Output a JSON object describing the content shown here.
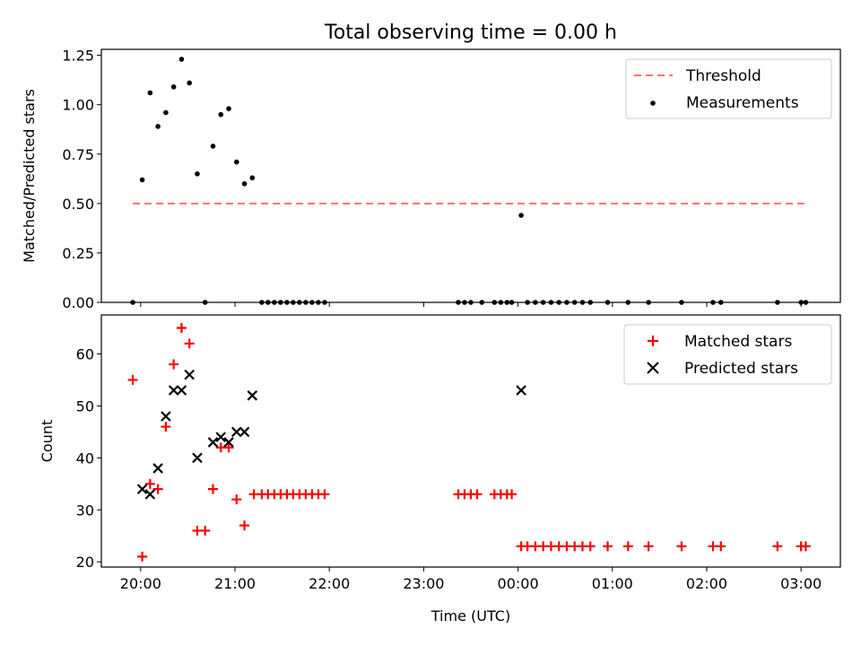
{
  "figure": {
    "title": "Total observing time = 0.00 h"
  },
  "chart_data": [
    {
      "type": "scatter",
      "panel": "top",
      "ylabel": "Matched/Predicted stars",
      "xlabel": "",
      "xlim": [
        "19:35",
        "03:25"
      ],
      "ylim": [
        0,
        1.28
      ],
      "yticks": [
        0.0,
        0.25,
        0.5,
        0.75,
        1.0,
        1.25
      ],
      "ytick_labels": [
        "0.00",
        "0.25",
        "0.50",
        "0.75",
        "1.00",
        "1.25"
      ],
      "xticks": [
        "20:00",
        "21:00",
        "22:00",
        "23:00",
        "00:00",
        "01:00",
        "02:00",
        "03:00"
      ],
      "show_xtick_labels": false,
      "legend_position": "top-right",
      "legend": [
        "Threshold",
        "Measurements"
      ],
      "colors": {
        "threshold": "#ff7070",
        "measurements": "#000000"
      },
      "threshold": {
        "name": "Threshold",
        "y": 0.5,
        "x": [
          "19:55",
          "03:05"
        ]
      },
      "series": [
        {
          "name": "Measurements",
          "marker": "dot",
          "points": [
            [
              "19:55",
              0.0
            ],
            [
              "20:01",
              0.62
            ],
            [
              "20:06",
              1.06
            ],
            [
              "20:11",
              0.89
            ],
            [
              "20:16",
              0.96
            ],
            [
              "20:21",
              1.09
            ],
            [
              "20:26",
              1.23
            ],
            [
              "20:31",
              1.11
            ],
            [
              "20:36",
              0.65
            ],
            [
              "20:41",
              0.0
            ],
            [
              "20:46",
              0.79
            ],
            [
              "20:51",
              0.95
            ],
            [
              "20:56",
              0.98
            ],
            [
              "21:01",
              0.71
            ],
            [
              "21:06",
              0.6
            ],
            [
              "21:11",
              0.63
            ],
            [
              "21:17",
              0.0
            ],
            [
              "21:21",
              0.0
            ],
            [
              "21:25",
              0.0
            ],
            [
              "21:29",
              0.0
            ],
            [
              "21:33",
              0.0
            ],
            [
              "21:37",
              0.0
            ],
            [
              "21:41",
              0.0
            ],
            [
              "21:45",
              0.0
            ],
            [
              "21:49",
              0.0
            ],
            [
              "21:53",
              0.0
            ],
            [
              "21:57",
              0.0
            ],
            [
              "23:22",
              0.0
            ],
            [
              "23:26",
              0.0
            ],
            [
              "23:30",
              0.0
            ],
            [
              "23:37",
              0.0
            ],
            [
              "23:45",
              0.0
            ],
            [
              "23:49",
              0.0
            ],
            [
              "23:53",
              0.0
            ],
            [
              "23:56",
              0.0
            ],
            [
              "00:02",
              0.44
            ],
            [
              "00:06",
              0.0
            ],
            [
              "00:11",
              0.0
            ],
            [
              "00:16",
              0.0
            ],
            [
              "00:21",
              0.0
            ],
            [
              "00:26",
              0.0
            ],
            [
              "00:31",
              0.0
            ],
            [
              "00:36",
              0.0
            ],
            [
              "00:41",
              0.0
            ],
            [
              "00:46",
              0.0
            ],
            [
              "00:57",
              0.0
            ],
            [
              "01:10",
              0.0
            ],
            [
              "01:23",
              0.0
            ],
            [
              "01:44",
              0.0
            ],
            [
              "02:04",
              0.0
            ],
            [
              "02:09",
              0.0
            ],
            [
              "02:45",
              0.0
            ],
            [
              "03:00",
              0.0
            ],
            [
              "03:03",
              0.0
            ]
          ]
        }
      ]
    },
    {
      "type": "scatter",
      "panel": "bottom",
      "ylabel": "Count",
      "xlabel": "Time (UTC)",
      "xlim": [
        "19:35",
        "03:25"
      ],
      "ylim": [
        19,
        67.5
      ],
      "yticks": [
        20,
        30,
        40,
        50,
        60
      ],
      "ytick_labels": [
        "20",
        "30",
        "40",
        "50",
        "60"
      ],
      "xticks": [
        "20:00",
        "21:00",
        "22:00",
        "23:00",
        "00:00",
        "01:00",
        "02:00",
        "03:00"
      ],
      "xtick_labels": [
        "20:00",
        "21:00",
        "22:00",
        "23:00",
        "00:00",
        "01:00",
        "02:00",
        "03:00"
      ],
      "show_xtick_labels": true,
      "legend_position": "top-right",
      "legend": [
        "Matched stars",
        "Predicted stars"
      ],
      "colors": {
        "matched": "#ff0000",
        "predicted": "#000000"
      },
      "series": [
        {
          "name": "Matched stars",
          "marker": "plus",
          "points": [
            [
              "19:55",
              55
            ],
            [
              "20:01",
              21
            ],
            [
              "20:06",
              35
            ],
            [
              "20:11",
              34
            ],
            [
              "20:16",
              46
            ],
            [
              "20:21",
              58
            ],
            [
              "20:26",
              65
            ],
            [
              "20:31",
              62
            ],
            [
              "20:36",
              26
            ],
            [
              "20:41",
              26
            ],
            [
              "20:46",
              34
            ],
            [
              "20:51",
              42
            ],
            [
              "20:56",
              42
            ],
            [
              "21:01",
              32
            ],
            [
              "21:06",
              27
            ],
            [
              "21:12",
              33
            ],
            [
              "21:17",
              33
            ],
            [
              "21:21",
              33
            ],
            [
              "21:25",
              33
            ],
            [
              "21:29",
              33
            ],
            [
              "21:33",
              33
            ],
            [
              "21:37",
              33
            ],
            [
              "21:41",
              33
            ],
            [
              "21:45",
              33
            ],
            [
              "21:49",
              33
            ],
            [
              "21:53",
              33
            ],
            [
              "21:57",
              33
            ],
            [
              "23:22",
              33
            ],
            [
              "23:26",
              33
            ],
            [
              "23:30",
              33
            ],
            [
              "23:34",
              33
            ],
            [
              "23:45",
              33
            ],
            [
              "23:49",
              33
            ],
            [
              "23:53",
              33
            ],
            [
              "23:56",
              33
            ],
            [
              "00:02",
              23
            ],
            [
              "00:06",
              23
            ],
            [
              "00:11",
              23
            ],
            [
              "00:16",
              23
            ],
            [
              "00:21",
              23
            ],
            [
              "00:26",
              23
            ],
            [
              "00:31",
              23
            ],
            [
              "00:36",
              23
            ],
            [
              "00:41",
              23
            ],
            [
              "00:46",
              23
            ],
            [
              "00:57",
              23
            ],
            [
              "01:10",
              23
            ],
            [
              "01:23",
              23
            ],
            [
              "01:44",
              23
            ],
            [
              "02:04",
              23
            ],
            [
              "02:09",
              23
            ],
            [
              "02:45",
              23
            ],
            [
              "03:00",
              23
            ],
            [
              "03:03",
              23
            ]
          ]
        },
        {
          "name": "Predicted stars",
          "marker": "x",
          "points": [
            [
              "20:01",
              34
            ],
            [
              "20:06",
              33
            ],
            [
              "20:11",
              38
            ],
            [
              "20:16",
              48
            ],
            [
              "20:21",
              53
            ],
            [
              "20:26",
              53
            ],
            [
              "20:31",
              56
            ],
            [
              "20:36",
              40
            ],
            [
              "20:46",
              43
            ],
            [
              "20:51",
              44
            ],
            [
              "20:56",
              43
            ],
            [
              "21:01",
              45
            ],
            [
              "21:06",
              45
            ],
            [
              "21:11",
              52
            ],
            [
              "00:02",
              53
            ]
          ]
        }
      ]
    }
  ]
}
